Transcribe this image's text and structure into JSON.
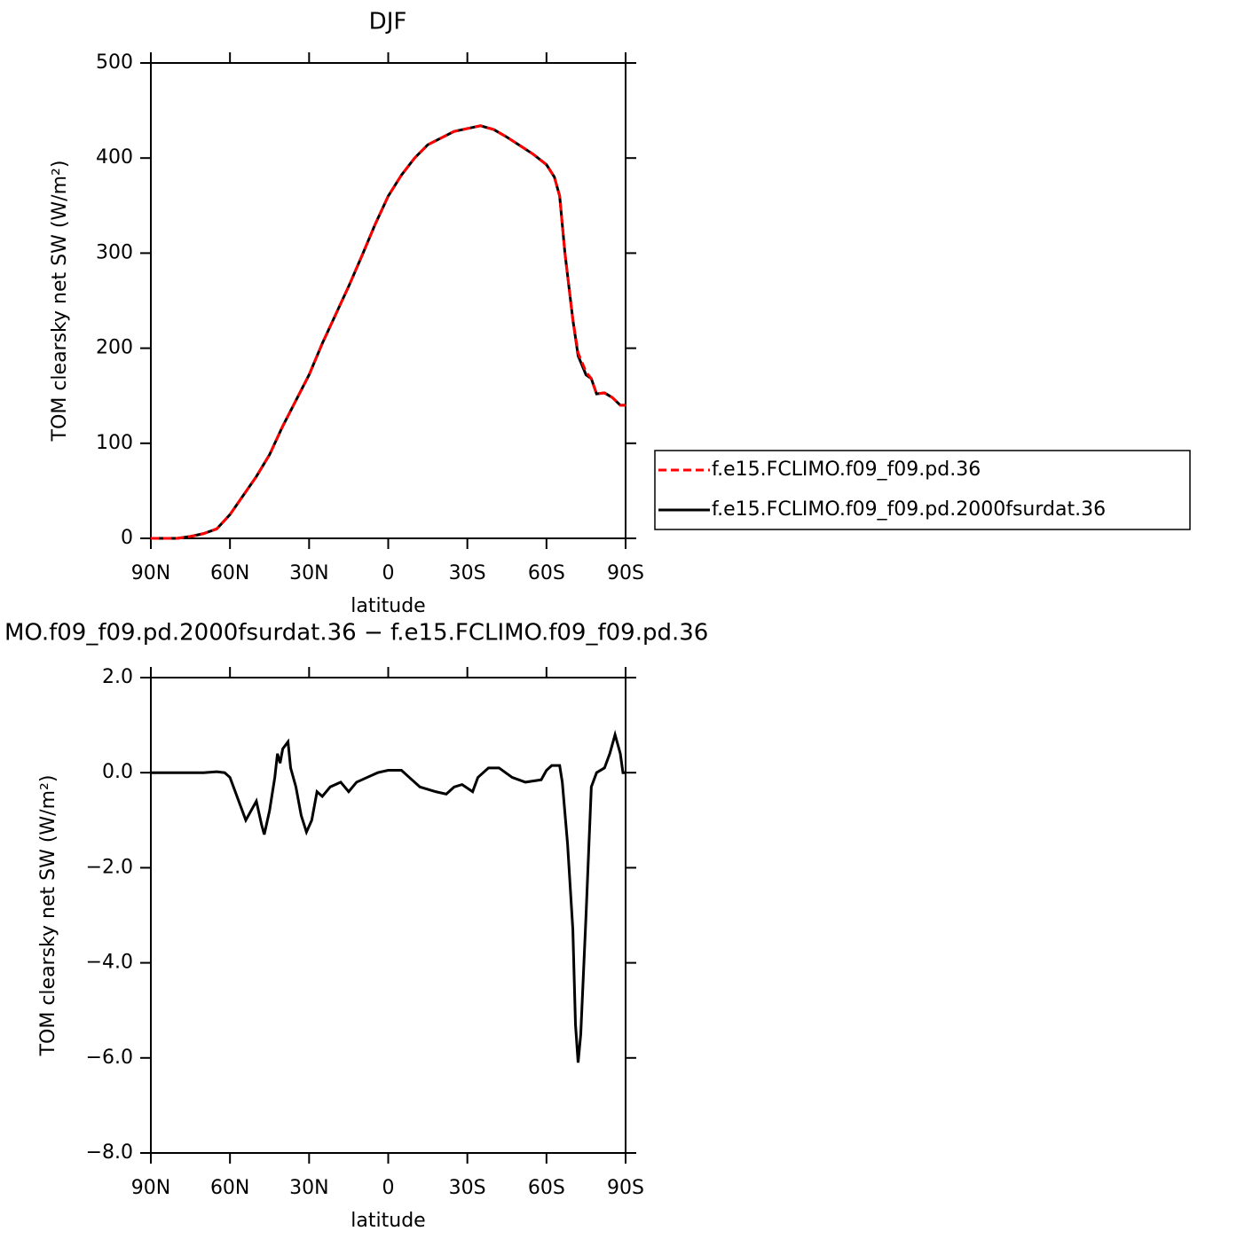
{
  "chart_data": [
    {
      "type": "line",
      "title": "DJF",
      "xlabel": "latitude",
      "ylabel": "TOM clearsky net SW (W/m²)",
      "xlim": [
        90,
        -90
      ],
      "ylim": [
        0,
        500
      ],
      "xticks": [
        {
          "value": 90,
          "label": "90N"
        },
        {
          "value": 60,
          "label": "60N"
        },
        {
          "value": 30,
          "label": "30N"
        },
        0,
        {
          "value": -30,
          "label": "30S"
        },
        {
          "value": -60,
          "label": "60S"
        },
        {
          "value": -90,
          "label": "90S"
        }
      ],
      "yticks": [
        0,
        100,
        200,
        300,
        400,
        500
      ],
      "x": [
        90,
        80,
        75,
        70,
        65,
        60,
        55,
        50,
        45,
        40,
        35,
        30,
        25,
        20,
        15,
        10,
        5,
        0,
        -5,
        -10,
        -15,
        -20,
        -25,
        -30,
        -35,
        -40,
        -45,
        -50,
        -55,
        -60,
        -63,
        -65,
        -67,
        -70,
        -72,
        -75,
        -77,
        -79,
        -82,
        -85,
        -88,
        -90
      ],
      "series": [
        {
          "name": "f.e15.FCLIMO.f09_f09.pd.36",
          "color": "#ff0000",
          "dash": true,
          "values": [
            0,
            0,
            2,
            5,
            10,
            25,
            45,
            65,
            88,
            118,
            145,
            172,
            205,
            235,
            265,
            297,
            330,
            360,
            382,
            400,
            414,
            421,
            428,
            431,
            434,
            430,
            422,
            413,
            404,
            393,
            380,
            360,
            300,
            230,
            195,
            175,
            168,
            152,
            153,
            148,
            140,
            140
          ]
        },
        {
          "name": "f.e15.FCLIMO.f09_f09.pd.2000fsurdat.36",
          "color": "#000000",
          "dash": false,
          "values": [
            0,
            0,
            2,
            5,
            10,
            25,
            45,
            65,
            88,
            118,
            145,
            172,
            205,
            235,
            265,
            297,
            330,
            360,
            382,
            400,
            414,
            421,
            428,
            431,
            434,
            430,
            422,
            413,
            404,
            393,
            380,
            360,
            300,
            230,
            192,
            172,
            168,
            152,
            153,
            148,
            140,
            140
          ]
        }
      ]
    },
    {
      "type": "line",
      "title": "MO.f09_f09.pd.2000fsurdat.36 − f.e15.FCLIMO.f09_f09.pd.36",
      "xlabel": "latitude",
      "ylabel": "TOM clearsky net SW (W/m²)",
      "xlim": [
        90,
        -90
      ],
      "ylim": [
        -8,
        2
      ],
      "xticks": [
        {
          "value": 90,
          "label": "90N"
        },
        {
          "value": 60,
          "label": "60N"
        },
        {
          "value": 30,
          "label": "30N"
        },
        0,
        {
          "value": -30,
          "label": "30S"
        },
        {
          "value": -60,
          "label": "60S"
        },
        {
          "value": -90,
          "label": "90S"
        }
      ],
      "yticks": [
        {
          "value": 2,
          "label": "2.0"
        },
        {
          "value": 0,
          "label": "0.0"
        },
        {
          "value": -2,
          "label": "−2.0"
        },
        {
          "value": -4,
          "label": "−4.0"
        },
        {
          "value": -6,
          "label": "−6.0"
        },
        {
          "value": -8,
          "label": "−8.0"
        }
      ],
      "x": [
        90,
        70,
        65,
        62,
        60,
        58,
        56,
        54,
        52,
        50,
        48,
        47,
        45,
        43,
        42,
        41,
        40,
        38,
        37,
        35,
        33,
        31,
        29,
        27,
        25,
        22,
        18,
        15,
        12,
        8,
        4,
        0,
        -5,
        -8,
        -12,
        -18,
        -22,
        -25,
        -28,
        -32,
        -34,
        -38,
        -42,
        -47,
        -52,
        -58,
        -60,
        -62,
        -65,
        -66,
        -68,
        -70,
        -71,
        -72,
        -73,
        -75,
        -77,
        -79,
        -82,
        -84,
        -86,
        -88,
        -89,
        -90
      ],
      "series": [
        {
          "color": "#000000",
          "dash": false,
          "values": [
            0,
            0,
            0.02,
            0,
            -0.1,
            -0.4,
            -0.7,
            -1.0,
            -0.8,
            -0.6,
            -1.1,
            -1.3,
            -0.8,
            -0.1,
            0.4,
            0.2,
            0.5,
            0.65,
            0.1,
            -0.3,
            -0.9,
            -1.25,
            -1.0,
            -0.4,
            -0.5,
            -0.3,
            -0.2,
            -0.4,
            -0.2,
            -0.1,
            0,
            0.05,
            0.05,
            -0.1,
            -0.3,
            -0.4,
            -0.45,
            -0.3,
            -0.25,
            -0.4,
            -0.1,
            0.1,
            0.1,
            -0.1,
            -0.2,
            -0.15,
            0.05,
            0.15,
            0.15,
            -0.2,
            -1.5,
            -3.3,
            -5.3,
            -6.1,
            -5.5,
            -3,
            -0.3,
            0,
            0.1,
            0.4,
            0.8,
            0.4,
            0,
            0
          ]
        }
      ]
    }
  ]
}
